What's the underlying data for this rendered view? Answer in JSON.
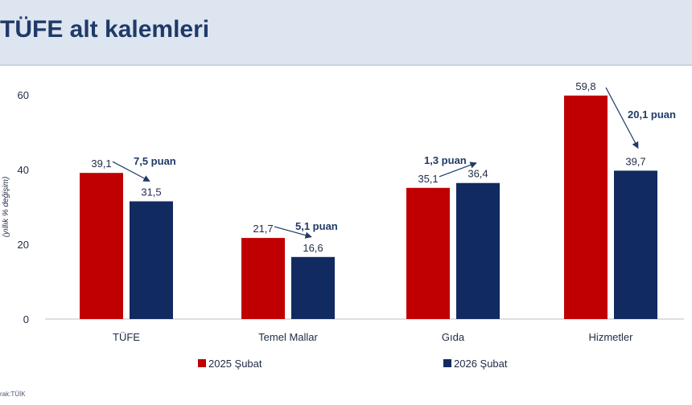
{
  "page": {
    "title": "TÜFE alt kalemleri",
    "source": "rak:TÜİK"
  },
  "colors": {
    "series_2025": "#c00000",
    "series_2026": "#112a60",
    "annotation": "#1f3a68"
  },
  "chart_data": {
    "type": "bar",
    "ylabel": "(yıllık % değişim)",
    "ylim": [
      0,
      65
    ],
    "yticks": [
      0,
      20,
      40,
      60
    ],
    "categories": [
      "TÜFE",
      "Temel Mallar",
      "Gıda",
      "Hizmetler"
    ],
    "series": [
      {
        "name": "2025 Şubat",
        "values": [
          39.1,
          21.7,
          35.1,
          59.8
        ],
        "labels": [
          "39,1",
          "21,7",
          "35,1",
          "59,8"
        ]
      },
      {
        "name": "2026 Şubat",
        "values": [
          31.5,
          16.6,
          36.4,
          39.7
        ],
        "labels": [
          "31,5",
          "16,6",
          "36,4",
          "39,7"
        ]
      }
    ],
    "annotations": [
      "7,5 puan",
      "5,1 puan",
      "1,3 puan",
      "20,1 puan"
    ],
    "legend": "bottom-center",
    "grid": false
  }
}
